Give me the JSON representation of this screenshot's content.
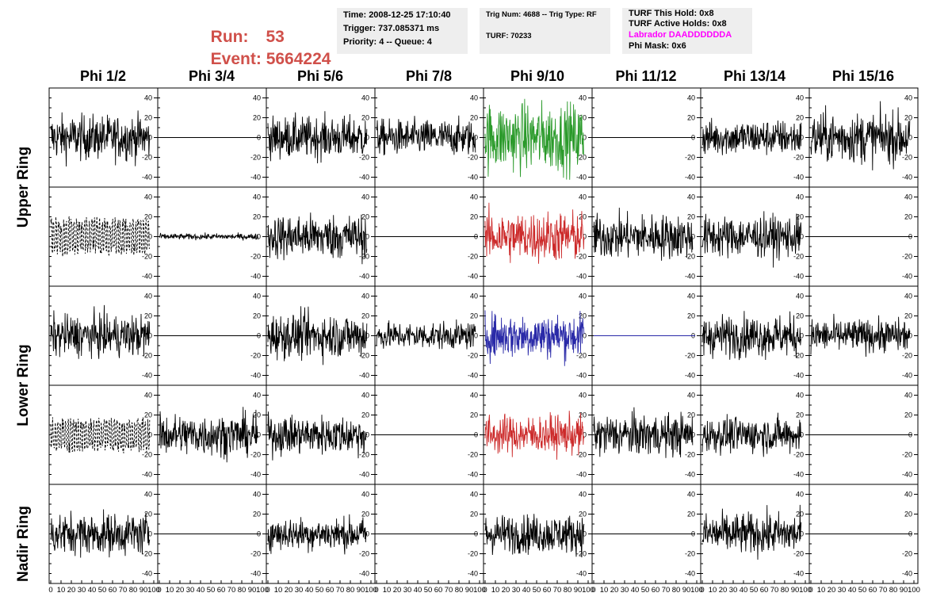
{
  "header": {
    "run_label": "Run:",
    "run_value": "53",
    "event_label": "Event:",
    "event_value": "5664224"
  },
  "info_box_1": {
    "time": "Time: 2008-12-25 17:10:40",
    "trigger": "Trigger: 737.085371 ms",
    "priority": "Priority: 4 -- Queue: 4"
  },
  "info_box_2": {
    "trig_num": "Trig Num: 4688 -- Trig Type: RF",
    "turf": "TURF: 70233"
  },
  "info_box_3": {
    "this_hold": "TURF This Hold: 0x8",
    "active_holds": "TURF Active Holds: 0x8",
    "labrador": "Labrador DAADDDDDDA",
    "phi_mask": "Phi Mask: 0x6"
  },
  "colors": {
    "run_text": "#d0504a",
    "labrador_text": "#ff00ff",
    "green_trace": "#2a9a2a",
    "red_trace": "#cc2a2a",
    "blue_trace": "#2a2aa8",
    "info_box_bg": "#eeeeee"
  },
  "chart_data": {
    "type": "line",
    "columns": [
      "Phi 1/2",
      "Phi 3/4",
      "Phi 5/6",
      "Phi 7/8",
      "Phi 9/10",
      "Phi 11/12",
      "Phi 13/14",
      "Phi 15/16"
    ],
    "ring_labels": [
      "Upper Ring",
      "Lower Ring",
      "Nadir Ring"
    ],
    "x_range": [
      0,
      100
    ],
    "x_ticks": [
      "0",
      "10",
      "20",
      "30",
      "40",
      "50",
      "60",
      "70",
      "80",
      "90",
      "100"
    ],
    "y_range": [
      -50,
      50
    ],
    "y_ticks": [
      "40",
      "20",
      "0",
      "-20",
      "-40"
    ],
    "panel_rows": [
      {
        "amplitudes": [
          15,
          0,
          14,
          12,
          23,
          0,
          12,
          17
        ],
        "styles": [
          "solid",
          "flat",
          "solid",
          "solid",
          "green",
          "flat",
          "solid",
          "solid"
        ]
      },
      {
        "amplitudes": [
          18,
          2,
          15,
          0,
          17,
          15,
          14,
          0
        ],
        "styles": [
          "dashed",
          "solid",
          "solid",
          "flat",
          "red",
          "solid",
          "solid",
          "flat"
        ]
      },
      {
        "amplitudes": [
          14,
          0,
          15,
          9,
          15,
          0,
          14,
          11
        ],
        "styles": [
          "solid",
          "flat",
          "solid",
          "solid",
          "blue",
          "flatblue",
          "solid",
          "solid"
        ]
      },
      {
        "amplitudes": [
          16,
          14,
          13,
          0,
          13,
          14,
          12,
          0
        ],
        "styles": [
          "dashed",
          "solid",
          "solid",
          "flat",
          "red",
          "solid",
          "solid",
          "flat"
        ]
      },
      {
        "amplitudes": [
          14,
          0,
          11,
          0,
          13,
          0,
          14,
          0
        ],
        "styles": [
          "solid",
          "flat",
          "solid",
          "flat",
          "solid",
          "flat",
          "solid",
          "flat"
        ]
      }
    ]
  }
}
